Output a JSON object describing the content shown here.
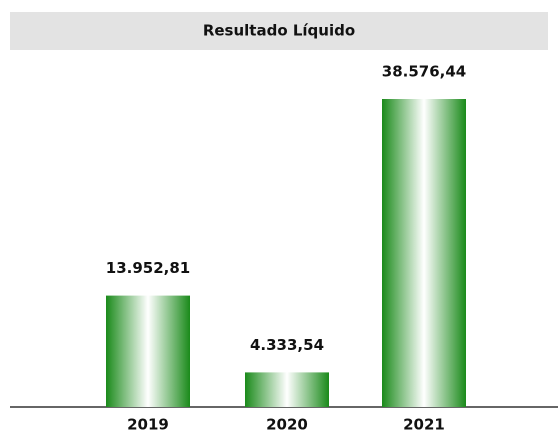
{
  "chart_data": {
    "type": "bar",
    "title": "Resultado Líquido",
    "categories": [
      "2019",
      "2020",
      "2021"
    ],
    "values": [
      13952.81,
      4333.54,
      38576.44
    ],
    "value_labels": [
      "13.952,81",
      "4.333,54",
      "38.576,44"
    ],
    "color": "#1a8a1a"
  }
}
